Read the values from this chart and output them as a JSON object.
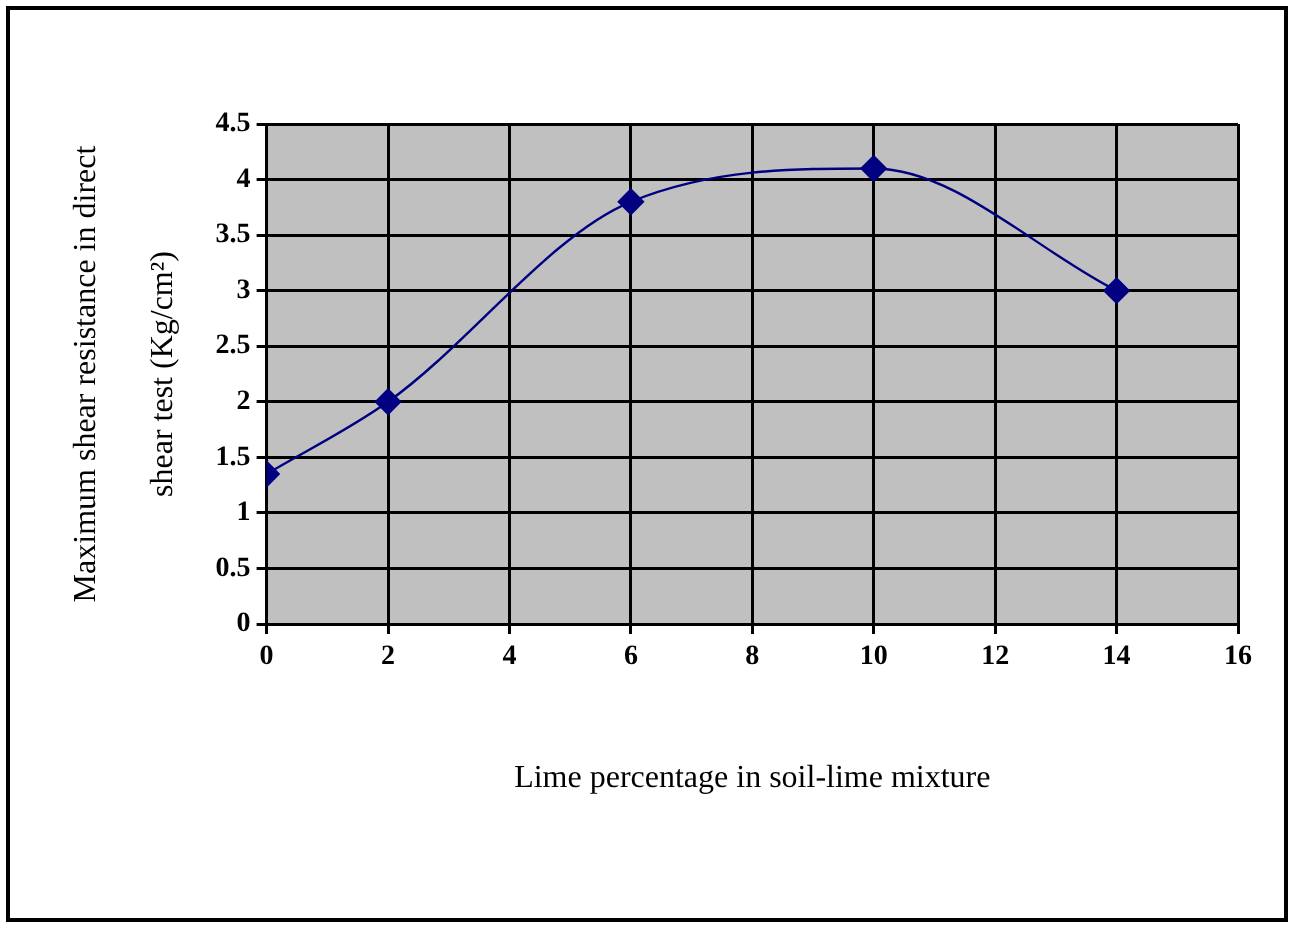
{
  "chart_data": {
    "type": "line",
    "xlabel": "Lime percentage in soil-lime mixture",
    "ylabel": "Maximum shear resistance in direct\nshear test (Kg/cm²)",
    "x": [
      0,
      2,
      6,
      10,
      14
    ],
    "series": [
      {
        "color": "#000080",
        "values": [
          1.35,
          2,
          3.8,
          4.1,
          3
        ]
      }
    ],
    "xlim": [
      0,
      16
    ],
    "xticks": [
      0,
      2,
      4,
      6,
      8,
      10,
      12,
      14,
      16
    ],
    "ylim": [
      0,
      4.5
    ],
    "yticks": [
      0,
      0.5,
      1,
      1.5,
      2,
      2.5,
      3,
      3.5,
      4,
      4.5
    ],
    "grid": true,
    "legend": false,
    "marker": "diamond",
    "line_style": "solid"
  }
}
